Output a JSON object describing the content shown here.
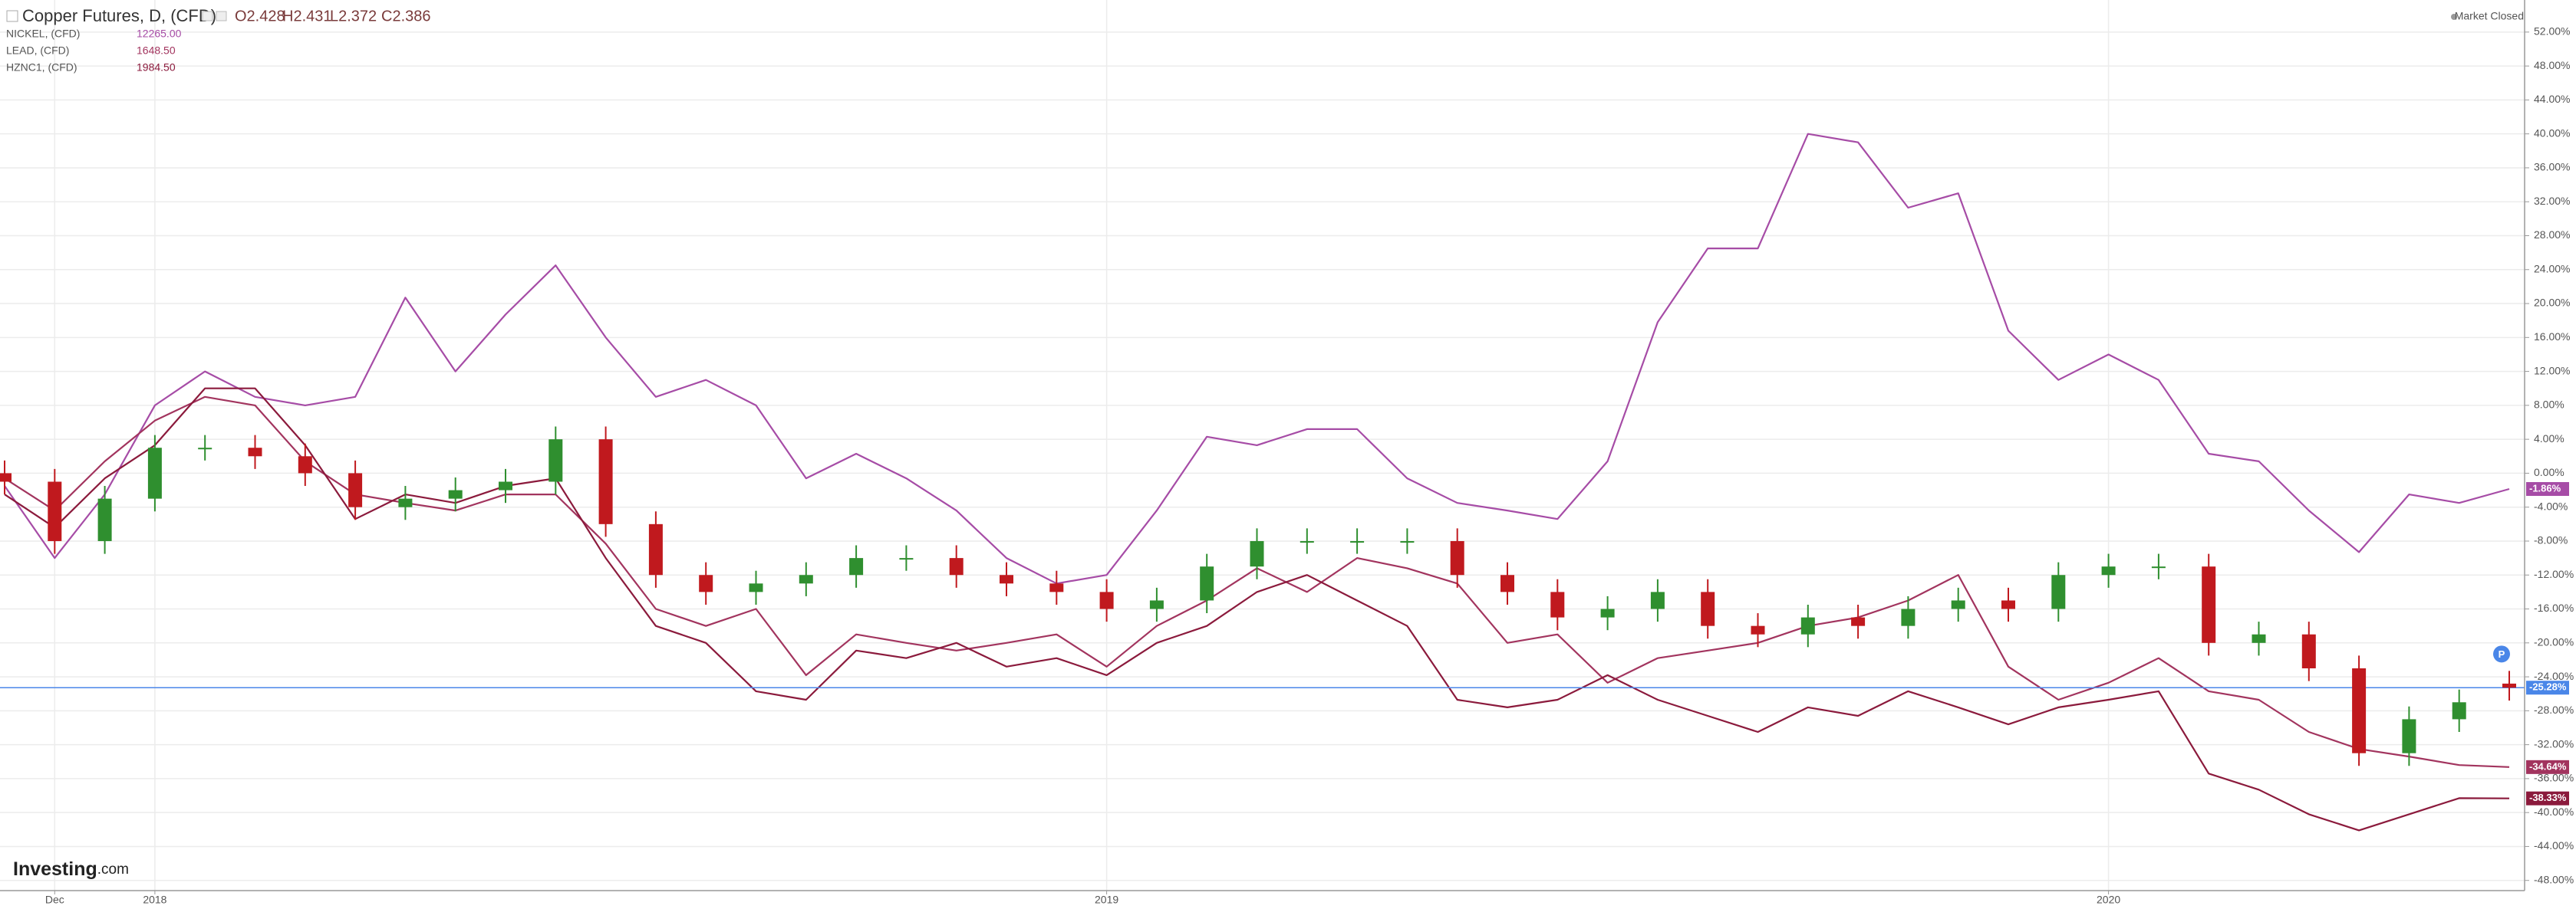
{
  "chart_data": {
    "type": "candlestick",
    "title": "Copper Futures, D, (CFD)",
    "ohlc_labels": [
      "O2.428",
      "H2.431",
      "L2.372",
      "C2.386"
    ],
    "status": "Market Closed",
    "logo": {
      "main": "Investing",
      "suffix": ".com"
    },
    "annotation": "P",
    "categories": [
      null,
      "Dec",
      null,
      "2018",
      null,
      null,
      null,
      null,
      null,
      null,
      null,
      null,
      null,
      null,
      null,
      null,
      null,
      null,
      null,
      null,
      null,
      null,
      "2019",
      null,
      null,
      null,
      null,
      null,
      null,
      null,
      null,
      null,
      null,
      null,
      null,
      null,
      null,
      null,
      null,
      null,
      null,
      null,
      "2020",
      null,
      null,
      null,
      null,
      null,
      null,
      null,
      null
    ],
    "ylim": [
      -49.2,
      55.6
    ],
    "yticks": [
      {
        "value": 52,
        "label": "52.00%"
      },
      {
        "value": 48,
        "label": "48.00%"
      },
      {
        "value": 44,
        "label": "44.00%"
      },
      {
        "value": 40,
        "label": "40.00%"
      },
      {
        "value": 36,
        "label": "36.00%"
      },
      {
        "value": 32,
        "label": "32.00%"
      },
      {
        "value": 28,
        "label": "28.00%"
      },
      {
        "value": 24,
        "label": "24.00%"
      },
      {
        "value": 20,
        "label": "20.00%"
      },
      {
        "value": 16,
        "label": "16.00%"
      },
      {
        "value": 12,
        "label": "12.00%"
      },
      {
        "value": 8,
        "label": "8.00%"
      },
      {
        "value": 4,
        "label": "4.00%"
      },
      {
        "value": 0,
        "label": "0.00%"
      },
      {
        "value": -4,
        "label": "-4.00%"
      },
      {
        "value": -8,
        "label": "-8.00%"
      },
      {
        "value": -12,
        "label": "-12.00%"
      },
      {
        "value": -16,
        "label": "-16.00%"
      },
      {
        "value": -20,
        "label": "-20.00%"
      },
      {
        "value": -24,
        "label": "-24.00%"
      },
      {
        "value": -28,
        "label": "-28.00%"
      },
      {
        "value": -32,
        "label": "-32.00%"
      },
      {
        "value": -36,
        "label": "-36.00%"
      },
      {
        "value": -40,
        "label": "-40.00%"
      },
      {
        "value": -44,
        "label": "-44.00%"
      },
      {
        "value": -48,
        "label": "-48.00%"
      }
    ],
    "grid": true,
    "candles": {
      "up_color": "#2f8f2f",
      "down_color": "#c0191e",
      "value_label": "-25.28%",
      "label_color": "#4a86e8",
      "open": [
        0,
        -1,
        -8,
        -3,
        3,
        3,
        2,
        0,
        -4,
        -3,
        -2,
        -1,
        4,
        -6,
        -12,
        -14,
        -13,
        -12,
        -10,
        -10,
        -12,
        -13,
        -14,
        -16,
        -15,
        -11,
        -8,
        -8,
        -8,
        -8,
        -12,
        -14,
        -17,
        -16,
        -14,
        -18,
        -19,
        -17,
        -18,
        -16,
        -15,
        -16,
        -12,
        -11,
        -11,
        -20,
        -19,
        -23,
        -33,
        -29,
        -24.8
      ],
      "high": [
        1.5,
        0.5,
        -1.5,
        4.5,
        4.5,
        4.5,
        3.5,
        1.5,
        -1.5,
        -0.5,
        0.5,
        5.5,
        5.5,
        -4.5,
        -10.5,
        -11.5,
        -10.5,
        -8.5,
        -8.5,
        -8.5,
        -10.5,
        -11.5,
        -12.5,
        -13.5,
        -9.5,
        -6.5,
        -6.5,
        -6.5,
        -6.5,
        -6.5,
        -10.5,
        -12.5,
        -14.5,
        -12.5,
        -12.5,
        -16.5,
        -15.5,
        -15.5,
        -14.5,
        -13.5,
        -13.5,
        -10.5,
        -9.5,
        -9.5,
        -9.5,
        -17.5,
        -17.5,
        -21.5,
        -27.5,
        -25.5,
        -23.3
      ],
      "low": [
        -2.5,
        -9.5,
        -9.5,
        -4.5,
        1.5,
        0.5,
        -1.5,
        -5.5,
        -5.5,
        -4.5,
        -3.5,
        -2.5,
        -7.5,
        -13.5,
        -15.5,
        -15.5,
        -14.5,
        -13.5,
        -11.5,
        -13.5,
        -14.5,
        -15.5,
        -17.5,
        -17.5,
        -16.5,
        -12.5,
        -9.5,
        -9.5,
        -9.5,
        -13.5,
        -15.5,
        -18.5,
        -18.5,
        -17.5,
        -19.5,
        -20.5,
        -20.5,
        -19.5,
        -19.5,
        -17.5,
        -17.5,
        -17.5,
        -13.5,
        -12.5,
        -21.5,
        -21.5,
        -24.5,
        -34.5,
        -34.5,
        -30.5,
        -26.8
      ],
      "close": [
        -1,
        -8,
        -3,
        3,
        3,
        2,
        0,
        -4,
        -3,
        -2,
        -1,
        4,
        -6,
        -12,
        -14,
        -13,
        -12,
        -10,
        -10,
        -12,
        -13,
        -14,
        -16,
        -15,
        -11,
        -8,
        -8,
        -8,
        -8,
        -12,
        -14,
        -17,
        -16,
        -14,
        -18,
        -19,
        -17,
        -18,
        -16,
        -15,
        -16,
        -12,
        -11,
        -11,
        -20,
        -19,
        -23,
        -33,
        -29,
        -27,
        -25.28
      ]
    },
    "series": [
      {
        "name": "NICKEL, (CFD)",
        "price": "12265.00",
        "color": "#a64ca6",
        "value_label": "-1.86%",
        "values": [
          -1.5,
          -10,
          -2.5,
          8,
          12,
          9,
          8,
          9,
          20.7,
          12,
          18.7,
          24.5,
          16,
          9,
          11,
          8,
          -0.6,
          2.3,
          -0.6,
          -4.4,
          -10,
          -13,
          -12,
          -4.4,
          4.3,
          3.3,
          5.2,
          5.2,
          -0.6,
          -3.5,
          -4.4,
          -5.4,
          1.4,
          17.8,
          26.5,
          26.5,
          40,
          39,
          31.3,
          33,
          16.8,
          11,
          14,
          11,
          2.3,
          1.4,
          -4.4,
          -9.3,
          -2.5,
          -3.5,
          -1.86
        ]
      },
      {
        "name": "LEAD, (CFD)",
        "price": "1648.50",
        "color": "#a2345e",
        "value_label": "-34.64%",
        "values": [
          -0.6,
          -4.4,
          1.4,
          6.2,
          9,
          8,
          1.4,
          -2.5,
          -3.5,
          -4.4,
          -2.5,
          -2.5,
          -8.3,
          -16,
          -18,
          -16,
          -23.8,
          -19,
          -20,
          -20.9,
          -20,
          -19,
          -22.8,
          -18,
          -15,
          -11.2,
          -14,
          -10,
          -11.2,
          -13,
          -20,
          -19,
          -24.7,
          -21.8,
          -20.9,
          -20,
          -18,
          -17,
          -15,
          -12,
          -22.8,
          -26.7,
          -24.7,
          -21.8,
          -25.7,
          -26.7,
          -30.5,
          -32.5,
          -33.4,
          -34.4,
          -34.64
        ]
      },
      {
        "name": "HZNC1, (CFD)",
        "price": "1984.50",
        "color": "#8b1a3c",
        "value_label": "-38.33%",
        "values": [
          -2.5,
          -6.4,
          -0.6,
          3.3,
          10,
          10,
          3.3,
          -5.4,
          -2.5,
          -3.5,
          -1.5,
          -0.6,
          -10,
          -18,
          -20,
          -25.7,
          -26.7,
          -20.9,
          -21.8,
          -20,
          -22.8,
          -21.8,
          -23.8,
          -20,
          -18,
          -14,
          -12,
          -15,
          -18,
          -26.7,
          -27.6,
          -26.7,
          -23.8,
          -26.7,
          -28.6,
          -30.5,
          -27.6,
          -28.6,
          -25.7,
          -27.6,
          -29.6,
          -27.6,
          -26.7,
          -25.7,
          -35.4,
          -37.3,
          -40.2,
          -42.1,
          -40.2,
          -38.3,
          -38.33
        ]
      }
    ]
  }
}
